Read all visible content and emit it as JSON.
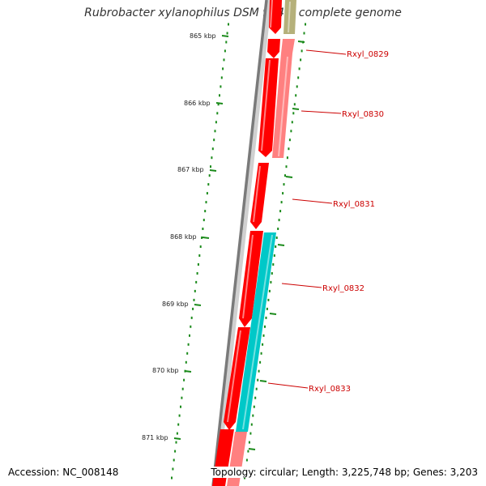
{
  "title": "Rubrobacter xylanophilus DSM 9941, complete genome",
  "footer": {
    "accession": "Accession: NC_008148",
    "summary": "Topology: circular; Length: 3,225,748 bp; Genes: 3,203"
  },
  "ticks": [
    {
      "label": "865 kbp"
    },
    {
      "label": "866 kbp"
    },
    {
      "label": "867 kbp"
    },
    {
      "label": "868 kbp"
    },
    {
      "label": "869 kbp"
    },
    {
      "label": "870 kbp"
    },
    {
      "label": "871 kbp"
    }
  ],
  "gene_labels": [
    {
      "label": "Rxyl_0829"
    },
    {
      "label": "Rxyl_0830"
    },
    {
      "label": "Rxyl_0831"
    },
    {
      "label": "Rxyl_0832"
    },
    {
      "label": "Rxyl_0833"
    }
  ],
  "colors": {
    "cds": "#ff0000",
    "cds_highlight": "#ff8080",
    "feature_olive": "#b5b07a",
    "feature_cyan": "#00c8c8",
    "backbone": "#808080",
    "tick": "#1a8a1a",
    "label": "#cc0000"
  }
}
